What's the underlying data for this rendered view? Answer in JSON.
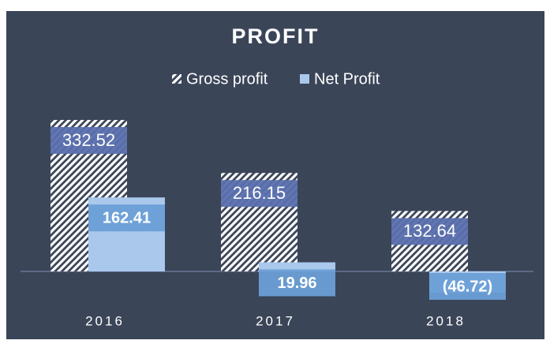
{
  "chart_data": {
    "type": "bar",
    "title": "PROFIT",
    "categories": [
      "2016",
      "2017",
      "2018"
    ],
    "series": [
      {
        "name": "Gross profit",
        "color": "#ffffff",
        "values": [
          332.52,
          216.15,
          132.64
        ]
      },
      {
        "name": "Net Profit",
        "color": "#a9c8ec",
        "values": [
          162.41,
          19.96,
          -46.72
        ],
        "value_labels": [
          "162.41",
          "19.96",
          "(46.72)"
        ]
      }
    ],
    "legend": "top"
  }
}
